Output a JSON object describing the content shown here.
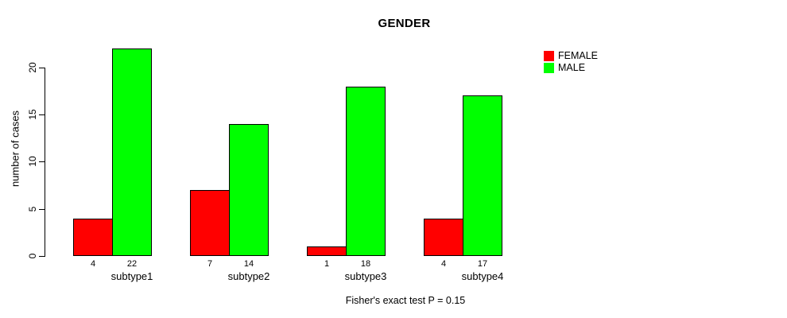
{
  "title": "GENDER",
  "footer_note": "Fisher's exact test P = 0.15",
  "colors": {
    "female": "#ff0000",
    "male": "#00ff00",
    "axis": "#000000",
    "background": "#ffffff"
  },
  "chart_data": {
    "type": "bar",
    "title": "GENDER",
    "xlabel": "",
    "ylabel": "number of cases",
    "categories": [
      "subtype1",
      "subtype2",
      "subtype3",
      "subtype4"
    ],
    "series": [
      {
        "name": "FEMALE",
        "color": "#ff0000",
        "values": [
          4,
          7,
          1,
          4
        ]
      },
      {
        "name": "MALE",
        "color": "#00ff00",
        "values": [
          22,
          14,
          18,
          17
        ]
      }
    ],
    "value_labels_shown_under_bars": true,
    "yticks": [
      0,
      5,
      10,
      15,
      20
    ],
    "ylim": [
      0,
      23
    ],
    "grid": false,
    "legend_position": "right",
    "annotation": "Fisher's exact test P = 0.15"
  }
}
